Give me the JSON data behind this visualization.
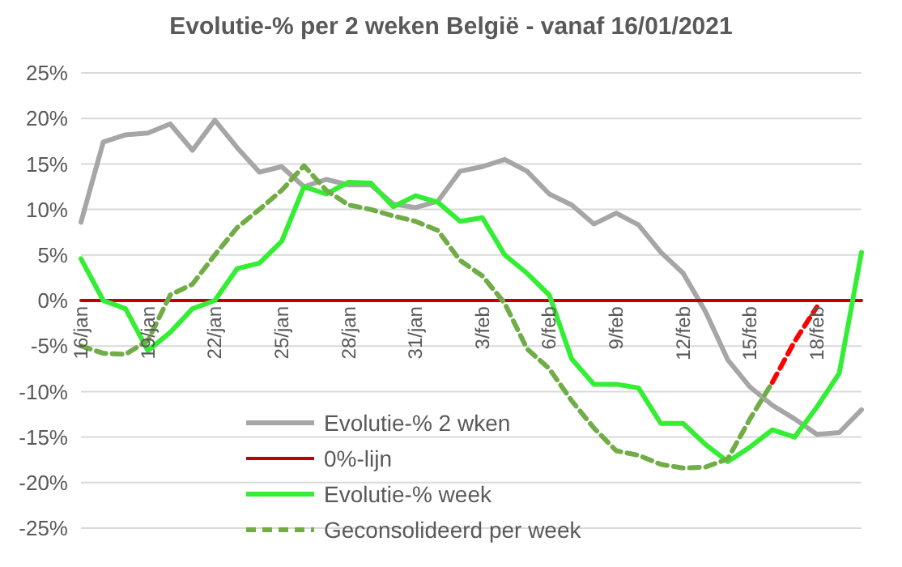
{
  "chart_data": {
    "type": "line",
    "title": "Evolutie-% per 2 weken België - vanaf 16/01/2021",
    "categories": [
      "16/jan",
      null,
      null,
      "19/jan",
      null,
      null,
      "22/jan",
      null,
      null,
      "25/jan",
      null,
      null,
      "28/jan",
      null,
      null,
      "31/jan",
      null,
      null,
      "3/feb",
      null,
      null,
      "6/feb",
      null,
      null,
      "9/feb",
      null,
      null,
      "12/feb",
      null,
      null,
      "15/feb",
      null,
      null,
      "18/feb",
      null,
      null
    ],
    "series": [
      {
        "name": "Evolutie-% 2 wken",
        "color": "#a6a6a6",
        "values": [
          8.6,
          17.4,
          18.2,
          18.4,
          19.4,
          16.5,
          19.8,
          16.8,
          14.1,
          14.7,
          12.5,
          13.3,
          12.7,
          12.7,
          10.6,
          10.2,
          10.9,
          14.2,
          14.7,
          15.5,
          14.2,
          11.7,
          10.5,
          8.4,
          9.6,
          8.3,
          5.3,
          3,
          -1.2,
          -6.5,
          -9.5,
          -11.5,
          -13,
          -14.7,
          -14.5,
          -12
        ]
      },
      {
        "name": "0%-lijn",
        "color": "#c00000",
        "values": [
          0,
          0,
          0,
          0,
          0,
          0,
          0,
          0,
          0,
          0,
          0,
          0,
          0,
          0,
          0,
          0,
          0,
          0,
          0,
          0,
          0,
          0,
          0,
          0,
          0,
          0,
          0,
          0,
          0,
          0,
          0,
          0,
          0,
          0,
          0,
          0
        ]
      },
      {
        "name": "Evolutie-% week",
        "color": "#33ee33",
        "values": [
          4.6,
          0,
          -0.9,
          -5.5,
          -3.5,
          -0.9,
          0,
          3.5,
          4.1,
          6.5,
          12.5,
          11.7,
          13,
          12.9,
          10.3,
          11.5,
          10.8,
          8.7,
          9.1,
          5,
          3,
          0.6,
          -6.4,
          -9.2,
          -9.2,
          -9.6,
          -13.5,
          -13.5,
          -15.8,
          -17.7,
          -16.1,
          -14.2,
          -15,
          -11.7,
          -8,
          5.3
        ]
      },
      {
        "name": "Geconsolideerd per week",
        "color": "#70ad47",
        "line_style": "dashed",
        "values": [
          -5,
          -5.8,
          -5.9,
          -4.4,
          0.6,
          1.8,
          5,
          8,
          10,
          12.1,
          14.8,
          12.1,
          10.5,
          10,
          9.3,
          8.7,
          7.7,
          4.4,
          2.7,
          -0.3,
          -5.3,
          -7.5,
          -11,
          -14,
          -16.5,
          -17,
          -18,
          -18.4,
          -18.3,
          -17.4,
          -13,
          -9,
          null,
          null,
          null,
          null
        ]
      },
      {
        "color": "#ff0000",
        "line_style": "dashed",
        "values": [
          null,
          null,
          null,
          null,
          null,
          null,
          null,
          null,
          null,
          null,
          null,
          null,
          null,
          null,
          null,
          null,
          null,
          null,
          null,
          null,
          null,
          null,
          null,
          null,
          null,
          null,
          null,
          null,
          null,
          null,
          null,
          -9,
          -4.5,
          -0.7,
          null,
          null
        ]
      }
    ],
    "ylim": [
      -25,
      25
    ],
    "yticks": [
      {
        "value": -25,
        "label": "-25%"
      },
      {
        "value": -20,
        "label": "-20%"
      },
      {
        "value": -15,
        "label": "-15%"
      },
      {
        "value": -10,
        "label": "-10%"
      },
      {
        "value": -5,
        "label": "-5%"
      },
      {
        "value": 0,
        "label": "0%"
      },
      {
        "value": 5,
        "label": "5%"
      },
      {
        "value": 10,
        "label": "10%"
      },
      {
        "value": 15,
        "label": "15%"
      },
      {
        "value": 20,
        "label": "20%"
      },
      {
        "value": 25,
        "label": "25%"
      }
    ],
    "grid": "y",
    "legend": "bottom",
    "marker": "none"
  }
}
